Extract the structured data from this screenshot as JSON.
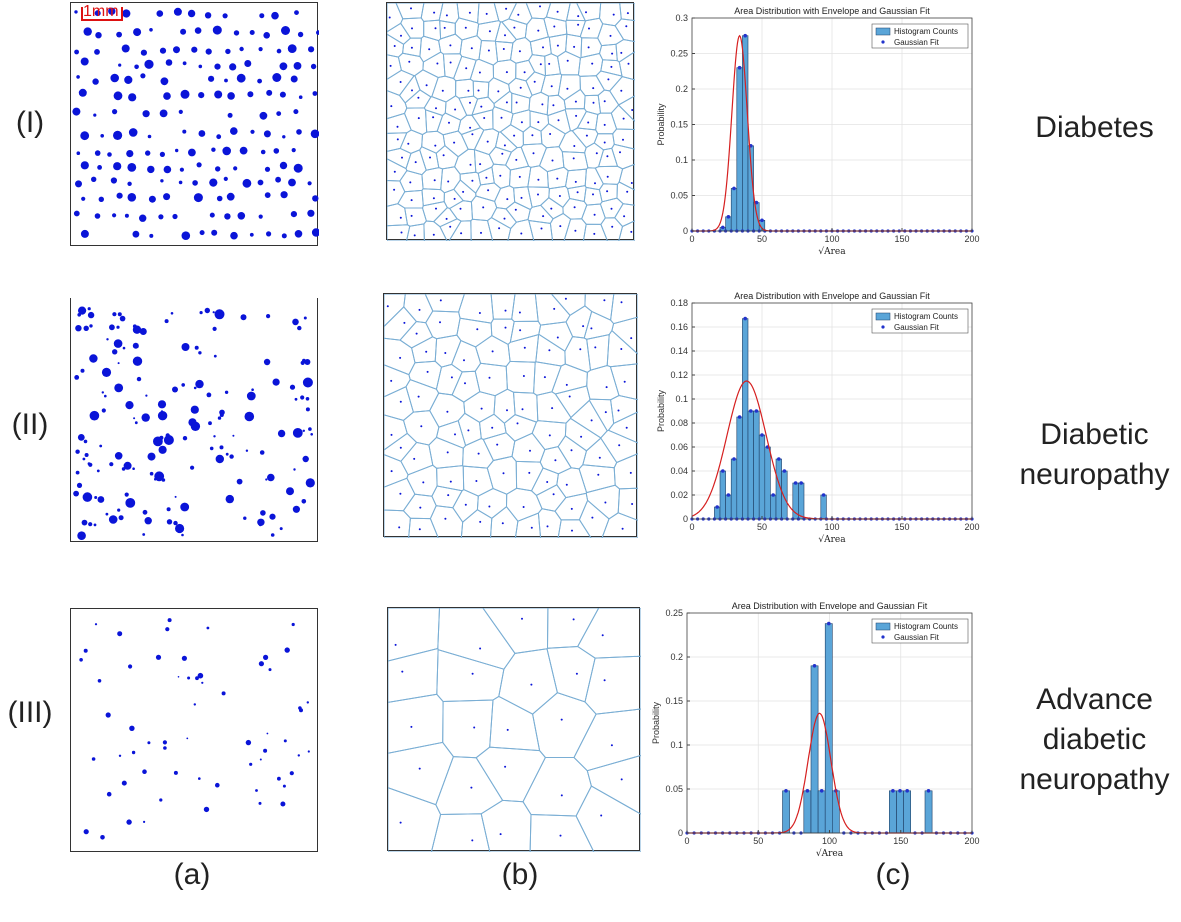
{
  "rows": [
    {
      "label": "(I)",
      "condition_lines": [
        "Diabetes"
      ]
    },
    {
      "label": "(II)",
      "condition_lines": [
        "Diabetic",
        "neuropathy"
      ]
    },
    {
      "label": "(III)",
      "condition_lines": [
        "Advance",
        "diabetic",
        "neuropathy"
      ]
    }
  ],
  "columns": [
    "(a)",
    "(b)",
    "(c)"
  ],
  "scale_bar": "1mm",
  "colors": {
    "dots": "#0a14d8",
    "voronoi": "#7aaed4",
    "bar_fill": "#5aa5d8",
    "bar_edge": "#1f3f66",
    "fit": "#d62020",
    "points": "#2233cc"
  },
  "chart_data": [
    {
      "type": "bar",
      "title": "Area Distribution with Envelope and Gaussian Fit",
      "xlabel": "√Area",
      "ylabel": "Probability",
      "xlim": [
        0,
        200
      ],
      "ylim": [
        0,
        0.3
      ],
      "xticks": [
        0,
        50,
        100,
        150,
        200
      ],
      "yticks": [
        0,
        0.05,
        0.1,
        0.15,
        0.2,
        0.25,
        0.3
      ],
      "bin_width": 4,
      "bins": [
        [
          20,
          0.005
        ],
        [
          24,
          0.02
        ],
        [
          28,
          0.06
        ],
        [
          32,
          0.23
        ],
        [
          36,
          0.275
        ],
        [
          40,
          0.12
        ],
        [
          44,
          0.04
        ],
        [
          48,
          0.015
        ]
      ],
      "gaussian": {
        "mean": 34,
        "sd": 5.5,
        "peak": 0.275
      },
      "legend": [
        "Histogram Counts",
        "Gaussian Fit"
      ],
      "legend_position": "top-right",
      "grid": true
    },
    {
      "type": "bar",
      "title": "Area Distribution with Envelope and Gaussian Fit",
      "xlabel": "√Area",
      "ylabel": "Probability",
      "xlim": [
        0,
        200
      ],
      "ylim": [
        0,
        0.18
      ],
      "xticks": [
        0,
        50,
        100,
        150,
        200
      ],
      "yticks": [
        0,
        0.02,
        0.04,
        0.06,
        0.08,
        0.1,
        0.12,
        0.14,
        0.16,
        0.18
      ],
      "bin_width": 4,
      "bins": [
        [
          16,
          0.01
        ],
        [
          20,
          0.04
        ],
        [
          24,
          0.02
        ],
        [
          28,
          0.05
        ],
        [
          32,
          0.085
        ],
        [
          36,
          0.167
        ],
        [
          40,
          0.09
        ],
        [
          44,
          0.09
        ],
        [
          48,
          0.07
        ],
        [
          52,
          0.06
        ],
        [
          56,
          0.02
        ],
        [
          60,
          0.05
        ],
        [
          64,
          0.04
        ],
        [
          72,
          0.03
        ],
        [
          76,
          0.03
        ],
        [
          92,
          0.02
        ]
      ],
      "gaussian": {
        "mean": 39,
        "sd": 14,
        "peak": 0.115
      },
      "legend": [
        "Histogram Counts",
        "Gaussian Fit"
      ],
      "legend_position": "top-right",
      "grid": true
    },
    {
      "type": "bar",
      "title": "Area Distribution with Envelope and Gaussian Fit",
      "xlabel": "√Area",
      "ylabel": "Probability",
      "xlim": [
        0,
        200
      ],
      "ylim": [
        0,
        0.25
      ],
      "xticks": [
        0,
        50,
        100,
        150,
        200
      ],
      "yticks": [
        0,
        0.05,
        0.1,
        0.15,
        0.2,
        0.25
      ],
      "bin_width": 5,
      "bins": [
        [
          67,
          0.048
        ],
        [
          82,
          0.048
        ],
        [
          87,
          0.19
        ],
        [
          92,
          0.048
        ],
        [
          97,
          0.238
        ],
        [
          102,
          0.048
        ],
        [
          142,
          0.048
        ],
        [
          147,
          0.048
        ],
        [
          152,
          0.048
        ],
        [
          167,
          0.048
        ]
      ],
      "gaussian": {
        "mean": 93,
        "sd": 8,
        "peak": 0.136
      },
      "legend": [
        "Histogram Counts",
        "Gaussian Fit"
      ],
      "legend_position": "top-right",
      "grid": true
    }
  ]
}
